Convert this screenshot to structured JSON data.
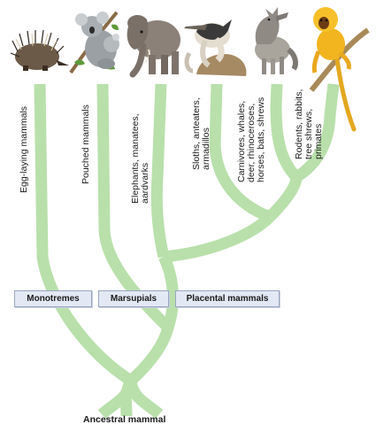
{
  "animals": [
    {
      "name": "echidna",
      "label_lines": [
        "Egg-laying mammals"
      ]
    },
    {
      "name": "koala",
      "label_lines": [
        "Pouched mammals"
      ]
    },
    {
      "name": "elephant",
      "label_lines": [
        "Elephants, manatees,",
        "aardvarks"
      ]
    },
    {
      "name": "anteater",
      "label_lines": [
        "Sloths, anteaters,",
        "armadillos"
      ]
    },
    {
      "name": "wolf",
      "label_lines": [
        "Carnivores, whales,",
        "deer, rhinoceroses,",
        "horses, bats, shrews"
      ]
    },
    {
      "name": "golden-monkey",
      "label_lines": [
        "Rodents, rabbits,",
        "tree shrews,",
        "primates"
      ]
    }
  ],
  "groups": {
    "monotremes": "Monotremes",
    "marsupials": "Marsupials",
    "placental": "Placental mammals"
  },
  "root": "Ancestral mammal",
  "colors": {
    "branch": "#b9e0ab",
    "group_box": "#e3e9f4"
  }
}
